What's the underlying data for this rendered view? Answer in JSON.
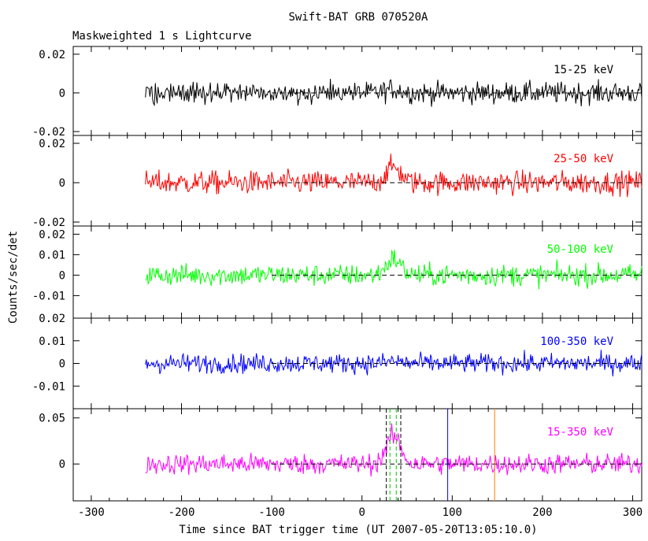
{
  "title": "Swift-BAT GRB 070520A",
  "subtitle": "Maskweighted 1 s Lightcurve",
  "ylabel": "Counts/sec/det",
  "xlabel": "Time since BAT trigger time (UT 2007-05-20T13:05:10.0)",
  "colors": {
    "15-25": "#000000",
    "25-50": "#ff0000",
    "50-100": "#00ff00",
    "100-350": "#0000ff",
    "15-350": "#ff00ff",
    "marker_green": "#00cc00",
    "marker_blue": "#0000ff",
    "marker_orange": "#ff8000"
  },
  "chart_data": {
    "type": "line",
    "xlim": [
      -320,
      310
    ],
    "x_ticks": [
      "-300",
      "-200",
      "-100",
      "0",
      "100",
      "200",
      "300"
    ],
    "x_tick_values": [
      -300,
      -200,
      -100,
      0,
      100,
      200,
      300
    ],
    "data_range": [
      -240,
      310
    ],
    "bin_seconds": 1,
    "marker_lines": [
      {
        "x": 27,
        "color": "black",
        "style": "dashed"
      },
      {
        "x": 43,
        "color": "black",
        "style": "dashed"
      },
      {
        "x": 31,
        "color": "green",
        "style": "dashed"
      },
      {
        "x": 38,
        "color": "green",
        "style": "dashed"
      },
      {
        "x": 95,
        "color": "blue",
        "style": "solid"
      },
      {
        "x": 147,
        "color": "orange",
        "style": "solid"
      }
    ],
    "panels": [
      {
        "name": "15-25 keV",
        "label": "15-25 keV",
        "ylim": [
          -0.022,
          0.024
        ],
        "ticks": [
          -0.02,
          0,
          0.02
        ],
        "tick_labels": [
          "-0.02",
          "0",
          "0.02"
        ],
        "noise": 0.0055,
        "pulse": 0.002
      },
      {
        "name": "25-50 keV",
        "label": "25-50 keV",
        "ylim": [
          -0.022,
          0.024
        ],
        "ticks": [
          -0.02,
          0,
          0.02
        ],
        "tick_labels": [
          "-0.02",
          "0",
          "0.02"
        ],
        "noise": 0.0058,
        "pulse": 0.008
      },
      {
        "name": "50-100 keV",
        "label": "50-100 keV",
        "ylim": [
          -0.021,
          0.024
        ],
        "ticks": [
          -0.01,
          0,
          0.01,
          0.02
        ],
        "tick_labels": [
          "-0.01",
          "0",
          "0.01",
          "0.02"
        ],
        "noise": 0.0052,
        "pulse": 0.008
      },
      {
        "name": "100-350 keV",
        "label": "100-350 keV",
        "ylim": [
          -0.02,
          0.02
        ],
        "ticks": [
          -0.01,
          0,
          0.01,
          0.02
        ],
        "tick_labels": [
          "-0.01",
          "0",
          "0.01",
          "0.02"
        ],
        "noise": 0.0042,
        "pulse": 0.001
      },
      {
        "name": "15-350 keV",
        "label": "15-350 keV",
        "ylim": [
          -0.04,
          0.06
        ],
        "ticks": [
          0,
          0.05
        ],
        "tick_labels": [
          "0",
          "0.05"
        ],
        "noise": 0.011,
        "pulse": 0.03
      }
    ]
  }
}
